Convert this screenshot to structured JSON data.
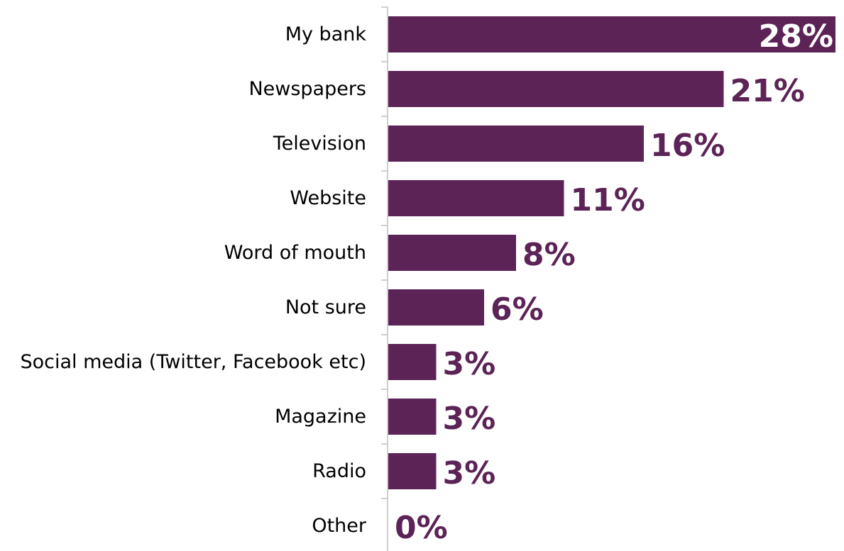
{
  "chart_data": {
    "type": "bar",
    "orientation": "horizontal",
    "categories": [
      "My bank",
      "Newspapers",
      "Television",
      "Website",
      "Word of mouth",
      "Not sure",
      "Social media (Twitter, Facebook etc)",
      "Magazine",
      "Radio",
      "Other"
    ],
    "values": [
      28,
      21,
      16,
      11,
      8,
      6,
      3,
      3,
      3,
      0
    ],
    "value_labels": [
      "28%",
      "21%",
      "16%",
      "11%",
      "8%",
      "6%",
      "3%",
      "3%",
      "3%",
      "0%"
    ],
    "title": "",
    "xlabel": "",
    "ylabel": "",
    "xlim": [
      0,
      28
    ],
    "grid": false,
    "legend": "none",
    "colors": {
      "bar": "#5c2357",
      "label_on_bar": "#ffffff",
      "label_outside": "#5c2357",
      "axis": "#bfbfbf"
    }
  }
}
